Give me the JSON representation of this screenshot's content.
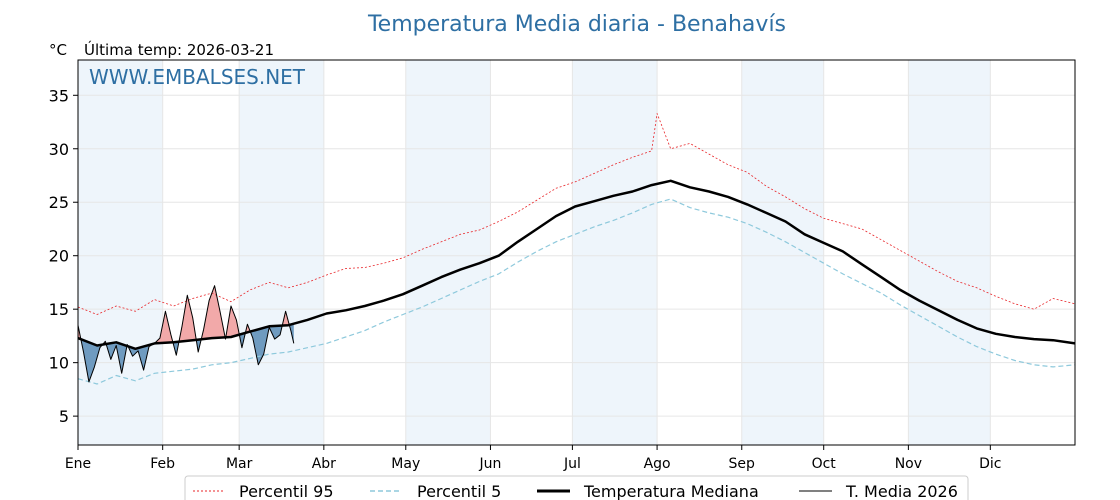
{
  "title": "Temperatura Media diaria - Benahavís",
  "unit": "°C",
  "last_update": "Última temp: 2026-03-21",
  "watermark": "WWW.EMBALSES.NET",
  "colors": {
    "p95": "#e8262a",
    "p5": "#8ec9dc",
    "median": "#000000",
    "current": "#000000",
    "above_fill": "#f2a9a9",
    "below_fill": "#6f9bc0",
    "band": "#eef5fb",
    "title": "#2e6fa3"
  },
  "chart_data": {
    "type": "line",
    "xlabel": "",
    "ylabel": "°C",
    "ylim": [
      2.3,
      38.3
    ],
    "xlim": [
      1,
      366
    ],
    "yticks": [
      5,
      10,
      15,
      20,
      25,
      30,
      35
    ],
    "grid": true,
    "legend_position": "bottom",
    "months": [
      {
        "label": "Ene",
        "day": 1
      },
      {
        "label": "Feb",
        "day": 32
      },
      {
        "label": "Mar",
        "day": 60
      },
      {
        "label": "Abr",
        "day": 91
      },
      {
        "label": "May",
        "day": 121
      },
      {
        "label": "Jun",
        "day": 152
      },
      {
        "label": "Jul",
        "day": 182
      },
      {
        "label": "Ago",
        "day": 213
      },
      {
        "label": "Sep",
        "day": 244
      },
      {
        "label": "Oct",
        "day": 274
      },
      {
        "label": "Nov",
        "day": 305
      },
      {
        "label": "Dic",
        "day": 335
      }
    ],
    "series": [
      {
        "name": "Percentil 95",
        "x": [
          1,
          8,
          15,
          22,
          29,
          36,
          43,
          50,
          57,
          64,
          71,
          78,
          85,
          92,
          99,
          106,
          113,
          120,
          127,
          134,
          141,
          148,
          155,
          162,
          169,
          176,
          183,
          190,
          197,
          204,
          211,
          213,
          218,
          225,
          232,
          239,
          246,
          253,
          260,
          267,
          274,
          281,
          288,
          295,
          302,
          309,
          316,
          323,
          330,
          337,
          344,
          351,
          358,
          366
        ],
        "values": [
          15.2,
          14.5,
          15.3,
          14.8,
          15.9,
          15.3,
          16.0,
          16.5,
          15.7,
          16.8,
          17.5,
          17.0,
          17.5,
          18.2,
          18.8,
          18.9,
          19.3,
          19.8,
          20.6,
          21.3,
          22.0,
          22.4,
          23.2,
          24.1,
          25.2,
          26.3,
          26.9,
          27.7,
          28.5,
          29.2,
          29.8,
          33.3,
          30.0,
          30.5,
          29.5,
          28.5,
          27.8,
          26.5,
          25.5,
          24.4,
          23.5,
          23.0,
          22.5,
          21.5,
          20.5,
          19.5,
          18.5,
          17.6,
          17.0,
          16.2,
          15.5,
          15.0,
          16.0,
          15.5
        ]
      },
      {
        "name": "Percentil 5",
        "x": [
          1,
          8,
          15,
          22,
          29,
          36,
          43,
          50,
          57,
          64,
          71,
          78,
          85,
          92,
          99,
          106,
          113,
          120,
          127,
          134,
          141,
          148,
          155,
          162,
          169,
          176,
          183,
          190,
          197,
          204,
          211,
          218,
          225,
          232,
          239,
          246,
          253,
          260,
          267,
          274,
          281,
          288,
          295,
          302,
          309,
          316,
          323,
          330,
          337,
          344,
          351,
          358,
          366
        ],
        "values": [
          8.5,
          8.0,
          8.8,
          8.3,
          9.0,
          9.2,
          9.4,
          9.8,
          10.0,
          10.4,
          10.8,
          11.0,
          11.4,
          11.8,
          12.4,
          13.0,
          13.8,
          14.5,
          15.2,
          16.0,
          16.8,
          17.6,
          18.3,
          19.4,
          20.4,
          21.3,
          22.0,
          22.7,
          23.3,
          24.0,
          24.8,
          25.3,
          24.5,
          24.0,
          23.6,
          23.0,
          22.2,
          21.3,
          20.3,
          19.3,
          18.3,
          17.4,
          16.5,
          15.4,
          14.4,
          13.4,
          12.4,
          11.5,
          10.8,
          10.2,
          9.8,
          9.6,
          9.8
        ]
      },
      {
        "name": "Temperatura Mediana",
        "x": [
          1,
          8,
          15,
          22,
          29,
          36,
          43,
          50,
          57,
          64,
          71,
          78,
          85,
          92,
          99,
          106,
          113,
          120,
          127,
          134,
          141,
          148,
          155,
          162,
          169,
          176,
          183,
          190,
          197,
          204,
          211,
          218,
          225,
          232,
          239,
          246,
          253,
          260,
          267,
          274,
          281,
          288,
          295,
          302,
          309,
          316,
          323,
          330,
          337,
          344,
          351,
          358,
          366
        ],
        "values": [
          12.3,
          11.6,
          11.9,
          11.3,
          11.8,
          11.9,
          12.1,
          12.3,
          12.4,
          12.9,
          13.4,
          13.5,
          14.0,
          14.6,
          14.9,
          15.3,
          15.8,
          16.4,
          17.2,
          18.0,
          18.7,
          19.3,
          20.0,
          21.3,
          22.5,
          23.7,
          24.6,
          25.1,
          25.6,
          26.0,
          26.6,
          27.0,
          26.4,
          26.0,
          25.5,
          24.8,
          24.0,
          23.2,
          22.0,
          21.2,
          20.4,
          19.2,
          18.0,
          16.8,
          15.8,
          14.9,
          14.0,
          13.2,
          12.7,
          12.4,
          12.2,
          12.1,
          11.8
        ]
      },
      {
        "name": "T. Media 2026",
        "x": [
          1,
          3,
          5,
          7,
          9,
          11,
          13,
          15,
          17,
          19,
          21,
          23,
          25,
          27,
          29,
          31,
          33,
          35,
          37,
          39,
          41,
          43,
          45,
          47,
          49,
          51,
          53,
          55,
          57,
          59,
          61,
          63,
          65,
          67,
          69,
          71,
          73,
          75,
          77,
          79,
          80
        ],
        "values": [
          13.5,
          11.0,
          8.2,
          9.6,
          11.4,
          12.0,
          10.3,
          11.6,
          9.0,
          11.7,
          10.6,
          11.1,
          9.3,
          11.5,
          11.8,
          12.3,
          14.8,
          12.6,
          10.7,
          13.3,
          16.3,
          14.2,
          11.0,
          13.1,
          15.8,
          17.2,
          14.8,
          12.2,
          15.3,
          14.0,
          11.4,
          13.6,
          12.3,
          9.8,
          10.8,
          13.3,
          12.2,
          12.6,
          14.8,
          12.9,
          11.8
        ]
      }
    ]
  },
  "legend": [
    {
      "label": "Percentil 95",
      "style": "p95"
    },
    {
      "label": "Percentil 5",
      "style": "p5"
    },
    {
      "label": "Temperatura Mediana",
      "style": "median"
    },
    {
      "label": "T. Media 2026",
      "style": "current"
    }
  ]
}
